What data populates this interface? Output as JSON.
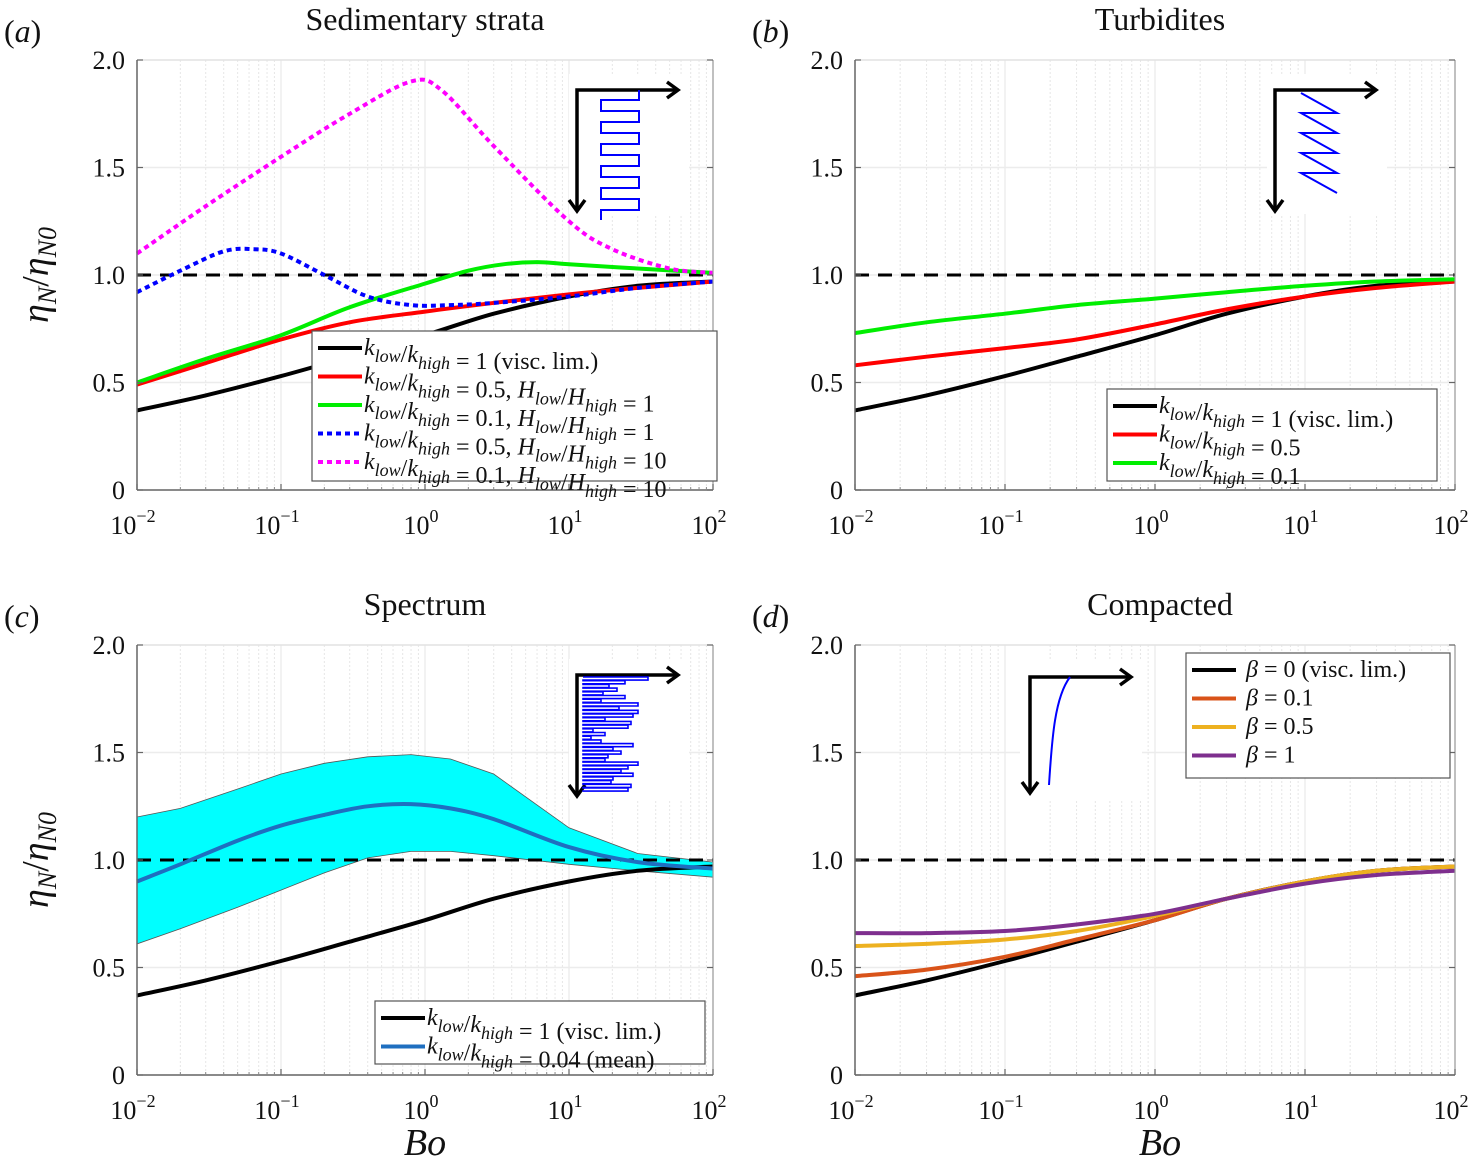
{
  "chart_data": [
    {
      "id": "a",
      "type": "line",
      "panel_label": "(a)",
      "title": "Sedimentary strata",
      "xlabel": "",
      "ylabel": "ηN/ηN0",
      "xscale": "log",
      "xlim": [
        0.01,
        100
      ],
      "ylim": [
        0,
        2.0
      ],
      "xticks": [
        "10^-2",
        "10^-1",
        "10^0",
        "10^1",
        "10^2"
      ],
      "yticks": [
        "0",
        "0.5",
        "1.0",
        "1.5",
        "2.0"
      ],
      "grid": true,
      "reference_line": {
        "y": 1.0,
        "style": "dashed",
        "color": "#000000"
      },
      "legend_position": "lower-right",
      "inset": "square-wave layering profile",
      "series": [
        {
          "name": "k_low/k_high = 1 (visc. lim.)",
          "color": "#000000",
          "style": "solid",
          "x": [
            0.01,
            0.03,
            0.1,
            0.3,
            1,
            3,
            10,
            30,
            100
          ],
          "y": [
            0.37,
            0.44,
            0.53,
            0.62,
            0.72,
            0.82,
            0.9,
            0.95,
            0.97
          ]
        },
        {
          "name": "k_low/k_high = 0.5, H_low/H_high = 1",
          "color": "#ff0000",
          "style": "solid",
          "x": [
            0.01,
            0.03,
            0.1,
            0.3,
            1,
            3,
            10,
            30,
            100
          ],
          "y": [
            0.49,
            0.59,
            0.7,
            0.78,
            0.83,
            0.87,
            0.91,
            0.94,
            0.97
          ]
        },
        {
          "name": "k_low/k_high = 0.1, H_low/H_high = 1",
          "color": "#00ee00",
          "style": "solid",
          "x": [
            0.01,
            0.03,
            0.1,
            0.3,
            1,
            2,
            3.5,
            6,
            10,
            30,
            100
          ],
          "y": [
            0.5,
            0.61,
            0.72,
            0.85,
            0.96,
            1.02,
            1.05,
            1.06,
            1.05,
            1.03,
            1.01
          ]
        },
        {
          "name": "k_low/k_high = 0.5, H_low/H_high = 10",
          "color": "#0000ff",
          "style": "dotted",
          "x": [
            0.01,
            0.02,
            0.04,
            0.065,
            0.1,
            0.2,
            0.4,
            0.8,
            1.5,
            3,
            10,
            30,
            100
          ],
          "y": [
            0.92,
            1.02,
            1.11,
            1.12,
            1.1,
            1.0,
            0.9,
            0.86,
            0.86,
            0.87,
            0.9,
            0.94,
            0.97
          ]
        },
        {
          "name": "k_low/k_high = 0.1, H_low/H_high = 10",
          "color": "#ff00ff",
          "style": "dotted",
          "x": [
            0.01,
            0.03,
            0.1,
            0.3,
            0.8,
            1.3,
            3,
            10,
            20,
            50,
            100
          ],
          "y": [
            1.1,
            1.32,
            1.55,
            1.75,
            1.9,
            1.86,
            1.6,
            1.25,
            1.12,
            1.03,
            1.01
          ]
        }
      ]
    },
    {
      "id": "b",
      "type": "line",
      "panel_label": "(b)",
      "title": "Turbidites",
      "xlabel": "",
      "ylabel": "",
      "xscale": "log",
      "xlim": [
        0.01,
        100
      ],
      "ylim": [
        0,
        2.0
      ],
      "xticks": [
        "10^-2",
        "10^-1",
        "10^0",
        "10^1",
        "10^2"
      ],
      "yticks": [
        "0",
        "0.5",
        "1.0",
        "1.5",
        "2.0"
      ],
      "grid": true,
      "reference_line": {
        "y": 1.0,
        "style": "dashed",
        "color": "#000000"
      },
      "legend_position": "lower-right",
      "inset": "sawtooth layering profile",
      "series": [
        {
          "name": "k_low/k_high = 1 (visc. lim.)",
          "color": "#000000",
          "style": "solid",
          "x": [
            0.01,
            0.03,
            0.1,
            0.3,
            1,
            3,
            10,
            30,
            100
          ],
          "y": [
            0.37,
            0.44,
            0.53,
            0.62,
            0.72,
            0.82,
            0.9,
            0.95,
            0.97
          ]
        },
        {
          "name": "k_low/k_high = 0.5",
          "color": "#ff0000",
          "style": "solid",
          "x": [
            0.01,
            0.03,
            0.1,
            0.3,
            1,
            3,
            10,
            30,
            100
          ],
          "y": [
            0.58,
            0.62,
            0.66,
            0.7,
            0.77,
            0.84,
            0.9,
            0.94,
            0.97
          ]
        },
        {
          "name": "k_low/k_high = 0.1",
          "color": "#00ee00",
          "style": "solid",
          "x": [
            0.01,
            0.03,
            0.1,
            0.3,
            1,
            3,
            10,
            30,
            100
          ],
          "y": [
            0.73,
            0.78,
            0.82,
            0.86,
            0.89,
            0.92,
            0.95,
            0.97,
            0.98
          ]
        }
      ]
    },
    {
      "id": "c",
      "type": "line",
      "panel_label": "(c)",
      "title": "Spectrum",
      "xlabel": "Bo",
      "ylabel": "ηN/ηN0",
      "xscale": "log",
      "xlim": [
        0.01,
        100
      ],
      "ylim": [
        0,
        2.0
      ],
      "xticks": [
        "10^-2",
        "10^-1",
        "10^0",
        "10^1",
        "10^2"
      ],
      "yticks": [
        "0",
        "0.5",
        "1.0",
        "1.5",
        "2.0"
      ],
      "grid": true,
      "reference_line": {
        "y": 1.0,
        "style": "dashed",
        "color": "#000000"
      },
      "legend_position": "lower-right",
      "inset": "random spectrum layering profile",
      "band": {
        "name": "range",
        "color": "#00ffff",
        "x": [
          0.01,
          0.02,
          0.05,
          0.1,
          0.2,
          0.4,
          0.8,
          1.5,
          3,
          10,
          30,
          100
        ],
        "upper": [
          1.2,
          1.24,
          1.33,
          1.4,
          1.45,
          1.48,
          1.49,
          1.47,
          1.4,
          1.15,
          1.03,
          0.99
        ],
        "lower": [
          0.61,
          0.68,
          0.78,
          0.86,
          0.94,
          1.01,
          1.04,
          1.04,
          1.02,
          0.98,
          0.95,
          0.92
        ]
      },
      "series": [
        {
          "name": "k_low/k_high = 1 (visc. lim.)",
          "color": "#000000",
          "style": "solid",
          "x": [
            0.01,
            0.03,
            0.1,
            0.3,
            1,
            3,
            10,
            30,
            100
          ],
          "y": [
            0.37,
            0.44,
            0.53,
            0.62,
            0.72,
            0.82,
            0.9,
            0.95,
            0.97
          ]
        },
        {
          "name": "k_low/k_high = 0.04 (mean)",
          "color": "#1f6fc0",
          "style": "solid",
          "x": [
            0.01,
            0.02,
            0.05,
            0.1,
            0.2,
            0.4,
            0.8,
            1.5,
            3,
            10,
            30,
            100
          ],
          "y": [
            0.9,
            0.98,
            1.09,
            1.16,
            1.21,
            1.25,
            1.26,
            1.24,
            1.19,
            1.06,
            0.99,
            0.96
          ]
        }
      ]
    },
    {
      "id": "d",
      "type": "line",
      "panel_label": "(d)",
      "title": "Compacted",
      "xlabel": "Bo",
      "ylabel": "",
      "xscale": "log",
      "xlim": [
        0.01,
        100
      ],
      "ylim": [
        0,
        2.0
      ],
      "xticks": [
        "10^-2",
        "10^-1",
        "10^0",
        "10^1",
        "10^2"
      ],
      "yticks": [
        "0",
        "0.5",
        "1.0",
        "1.5",
        "2.0"
      ],
      "grid": true,
      "reference_line": {
        "y": 1.0,
        "style": "dashed",
        "color": "#000000"
      },
      "legend_position": "top-right",
      "inset": "exponential compaction profile",
      "series": [
        {
          "name": "β = 0 (visc. lim.)",
          "color": "#000000",
          "style": "solid",
          "x": [
            0.01,
            0.03,
            0.1,
            0.3,
            1,
            3,
            10,
            30,
            100
          ],
          "y": [
            0.37,
            0.44,
            0.53,
            0.62,
            0.72,
            0.82,
            0.9,
            0.95,
            0.97
          ]
        },
        {
          "name": "β = 0.1",
          "color": "#d95319",
          "style": "solid",
          "x": [
            0.01,
            0.03,
            0.1,
            0.3,
            1,
            3,
            10,
            30,
            100
          ],
          "y": [
            0.46,
            0.49,
            0.55,
            0.63,
            0.72,
            0.82,
            0.9,
            0.95,
            0.97
          ]
        },
        {
          "name": "β = 0.5",
          "color": "#edb120",
          "style": "solid",
          "x": [
            0.01,
            0.03,
            0.1,
            0.3,
            1,
            3,
            10,
            30,
            100
          ],
          "y": [
            0.6,
            0.61,
            0.63,
            0.67,
            0.74,
            0.82,
            0.9,
            0.95,
            0.97
          ]
        },
        {
          "name": "β = 1",
          "color": "#7e2f8e",
          "style": "solid",
          "x": [
            0.01,
            0.03,
            0.1,
            0.3,
            1,
            3,
            10,
            30,
            100
          ],
          "y": [
            0.66,
            0.66,
            0.67,
            0.7,
            0.75,
            0.82,
            0.89,
            0.93,
            0.95
          ]
        }
      ]
    }
  ]
}
